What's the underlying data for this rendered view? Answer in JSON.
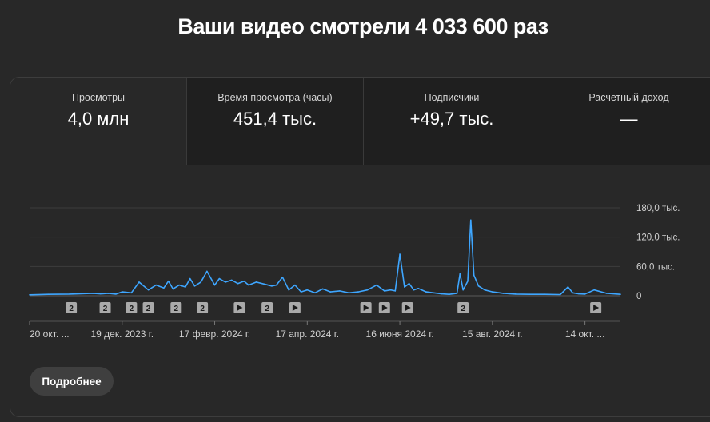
{
  "headline": "Ваши видео смотрели 4 033 600 раз",
  "tabs": [
    {
      "label": "Просмотры",
      "value": "4,0 млн"
    },
    {
      "label": "Время просмотра (часы)",
      "value": "451,4 тыс."
    },
    {
      "label": "Подписчики",
      "value": "+49,7 тыс."
    },
    {
      "label": "Расчетный доход",
      "value": "—"
    }
  ],
  "details_button": "Подробнее",
  "colors": {
    "line": "#3ea6ff",
    "background": "#282828",
    "marker": "#aaaaaa"
  },
  "chart_data": {
    "type": "line",
    "title": "",
    "xlabel": "",
    "ylabel": "",
    "ylim": [
      0,
      180000
    ],
    "y_ticks": [
      0,
      60000,
      120000,
      180000
    ],
    "y_tick_labels": [
      "0",
      "60,0 тыс.",
      "120,0 тыс.",
      "180,0 тыс."
    ],
    "y_axis_position": "right",
    "grid": true,
    "x_range": [
      "2023-10-20",
      "2024-11-06"
    ],
    "x_ticks": [
      "2023-10-20",
      "2023-12-19",
      "2024-02-17",
      "2024-04-17",
      "2024-06-16",
      "2024-08-15",
      "2024-10-14"
    ],
    "x_tick_labels": [
      "20 окт. ...",
      "19 дек. 2023 г.",
      "17 февр. 2024 г.",
      "17 апр. 2024 г.",
      "16 июня 2024 г.",
      "15 авг. 2024 г.",
      "14 окт. ..."
    ],
    "series": [
      {
        "x": [
          "2023-10-20",
          "2023-11-01",
          "2023-11-15",
          "2023-11-30",
          "2023-12-05",
          "2023-12-10",
          "2023-12-15",
          "2023-12-19",
          "2023-12-25",
          "2023-12-30",
          "2024-01-05",
          "2024-01-10",
          "2024-01-15",
          "2024-01-18",
          "2024-01-21",
          "2024-01-25",
          "2024-01-29",
          "2024-02-01",
          "2024-02-04",
          "2024-02-08",
          "2024-02-12",
          "2024-02-17",
          "2024-02-20",
          "2024-02-24",
          "2024-02-28",
          "2024-03-03",
          "2024-03-07",
          "2024-03-10",
          "2024-03-15",
          "2024-03-20",
          "2024-03-25",
          "2024-03-28",
          "2024-04-01",
          "2024-04-05",
          "2024-04-09",
          "2024-04-13",
          "2024-04-17",
          "2024-04-22",
          "2024-04-27",
          "2024-05-02",
          "2024-05-08",
          "2024-05-14",
          "2024-05-20",
          "2024-05-26",
          "2024-06-01",
          "2024-06-06",
          "2024-06-10",
          "2024-06-13",
          "2024-06-16",
          "2024-06-19",
          "2024-06-22",
          "2024-06-25",
          "2024-06-28",
          "2024-07-03",
          "2024-07-08",
          "2024-07-13",
          "2024-07-18",
          "2024-07-23",
          "2024-07-25",
          "2024-07-27",
          "2024-07-30",
          "2024-08-01",
          "2024-08-03",
          "2024-08-06",
          "2024-08-10",
          "2024-08-15",
          "2024-08-22",
          "2024-08-30",
          "2024-09-08",
          "2024-09-18",
          "2024-09-28",
          "2024-10-03",
          "2024-10-06",
          "2024-10-10",
          "2024-10-14",
          "2024-10-20",
          "2024-10-28",
          "2024-11-06"
        ],
        "y": [
          2000,
          3000,
          3500,
          5000,
          4000,
          5000,
          3500,
          8000,
          6000,
          28000,
          12000,
          22000,
          16000,
          30000,
          14000,
          22000,
          18000,
          35000,
          20000,
          28000,
          50000,
          22000,
          35000,
          28000,
          32000,
          25000,
          30000,
          22000,
          28000,
          24000,
          20000,
          22000,
          38000,
          12000,
          22000,
          8000,
          12000,
          6000,
          14000,
          8000,
          10000,
          6000,
          8000,
          12000,
          22000,
          10000,
          12000,
          10000,
          85000,
          18000,
          25000,
          12000,
          15000,
          8000,
          6000,
          4000,
          3000,
          5000,
          45000,
          12000,
          30000,
          155000,
          42000,
          20000,
          12000,
          8000,
          5000,
          3500,
          3000,
          3000,
          2500,
          18000,
          6000,
          4000,
          3500,
          12000,
          5000,
          3000
        ]
      }
    ],
    "markers": [
      {
        "date": "2023-11-16",
        "label": "2"
      },
      {
        "date": "2023-12-08",
        "label": "2"
      },
      {
        "date": "2023-12-25",
        "label": "2"
      },
      {
        "date": "2024-01-05",
        "label": "2"
      },
      {
        "date": "2024-01-23",
        "label": "2"
      },
      {
        "date": "2024-02-09",
        "label": "2"
      },
      {
        "date": "2024-03-04",
        "label": "play"
      },
      {
        "date": "2024-03-22",
        "label": "2"
      },
      {
        "date": "2024-04-09",
        "label": "play"
      },
      {
        "date": "2024-05-25",
        "label": "play"
      },
      {
        "date": "2024-06-06",
        "label": "play"
      },
      {
        "date": "2024-06-21",
        "label": "play"
      },
      {
        "date": "2024-07-27",
        "label": "2"
      },
      {
        "date": "2024-10-21",
        "label": "play"
      }
    ]
  }
}
